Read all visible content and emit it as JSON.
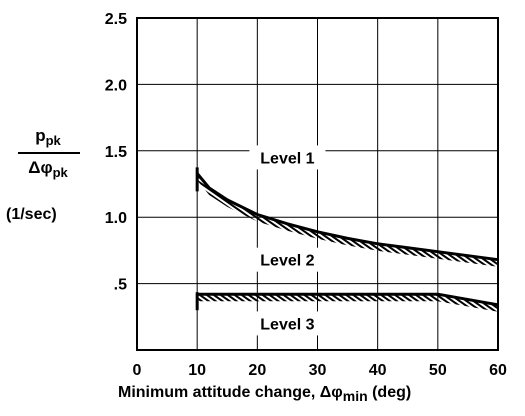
{
  "chart_data": {
    "type": "line",
    "title": "",
    "xlabel": {
      "pre": "Minimum attitude change, ",
      "symbol": "Δφ",
      "sub": "min",
      "post": " (deg)"
    },
    "ylabel": {
      "numerator": "p",
      "numerator_sub": "pk",
      "denominator": "Δφ",
      "denominator_sub": "pk",
      "units": "(1/sec)"
    },
    "xlim": [
      0,
      60
    ],
    "ylim": [
      0,
      2.5
    ],
    "x_ticks": [
      {
        "value": 0,
        "label": "0"
      },
      {
        "value": 10,
        "label": "10"
      },
      {
        "value": 20,
        "label": "20"
      },
      {
        "value": 30,
        "label": "30"
      },
      {
        "value": 40,
        "label": "40"
      },
      {
        "value": 50,
        "label": "50"
      },
      {
        "value": 60,
        "label": "60"
      }
    ],
    "y_ticks": [
      {
        "value": 0.5,
        "label": ".5"
      },
      {
        "value": 1.0,
        "label": "1.0"
      },
      {
        "value": 1.5,
        "label": "1.5"
      },
      {
        "value": 2.0,
        "label": "2.0"
      },
      {
        "value": 2.5,
        "label": "2.5"
      }
    ],
    "grid": true,
    "series": [
      {
        "boundary": "level1-level2",
        "x": [
          10,
          12,
          15,
          20,
          25,
          30,
          35,
          40,
          45,
          50,
          55,
          60
        ],
        "y": [
          1.33,
          1.22,
          1.13,
          1.02,
          0.95,
          0.89,
          0.84,
          0.8,
          0.77,
          0.74,
          0.71,
          0.68
        ]
      },
      {
        "boundary": "level2-level3",
        "x": [
          10,
          20,
          30,
          40,
          50,
          60
        ],
        "y": [
          0.42,
          0.42,
          0.42,
          0.42,
          0.42,
          0.34
        ]
      }
    ],
    "annotations": [
      {
        "text": "Level 1",
        "x": 25,
        "y": 1.45
      },
      {
        "text": "Level 2",
        "x": 25,
        "y": 0.68
      },
      {
        "text": "Level 3",
        "x": 25,
        "y": 0.2
      }
    ],
    "colors": {
      "line": "#000000",
      "background": "#ffffff",
      "grid": "#000000"
    }
  }
}
